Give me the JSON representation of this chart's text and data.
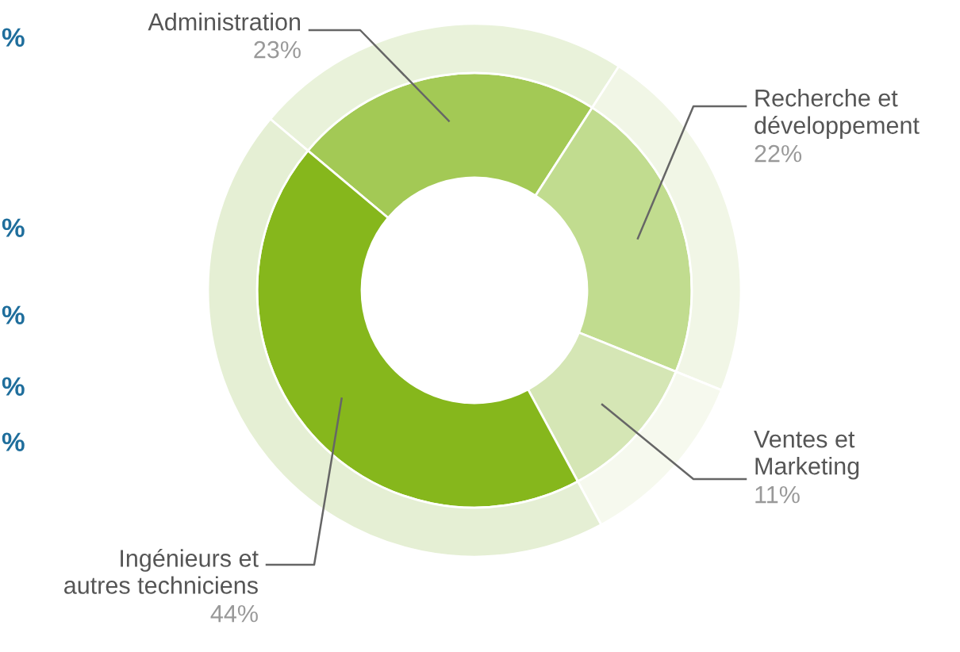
{
  "chart_data": {
    "type": "donut",
    "categories": [
      "Administration",
      "Recherche et\ndéveloppement",
      "Ventes et\nMarketing",
      "Ingénieurs et\nautres techniciens"
    ],
    "series": [
      {
        "values": [
          23,
          22,
          11,
          44
        ],
        "colors": [
          "#a3c955",
          "#c1dc8f",
          "#d5e6b5",
          "#86b71c"
        ],
        "value_labels": [
          "23%",
          "22%",
          "11%",
          "44%"
        ]
      },
      {
        "values": [
          23,
          22,
          11,
          44
        ],
        "colors": [
          "#e9f2da",
          "#f1f6e6",
          "#f6f9ee",
          "#e5efd4"
        ]
      }
    ],
    "annotations": [
      "%",
      "%",
      "%",
      "%",
      "%"
    ],
    "legend": false
  }
}
